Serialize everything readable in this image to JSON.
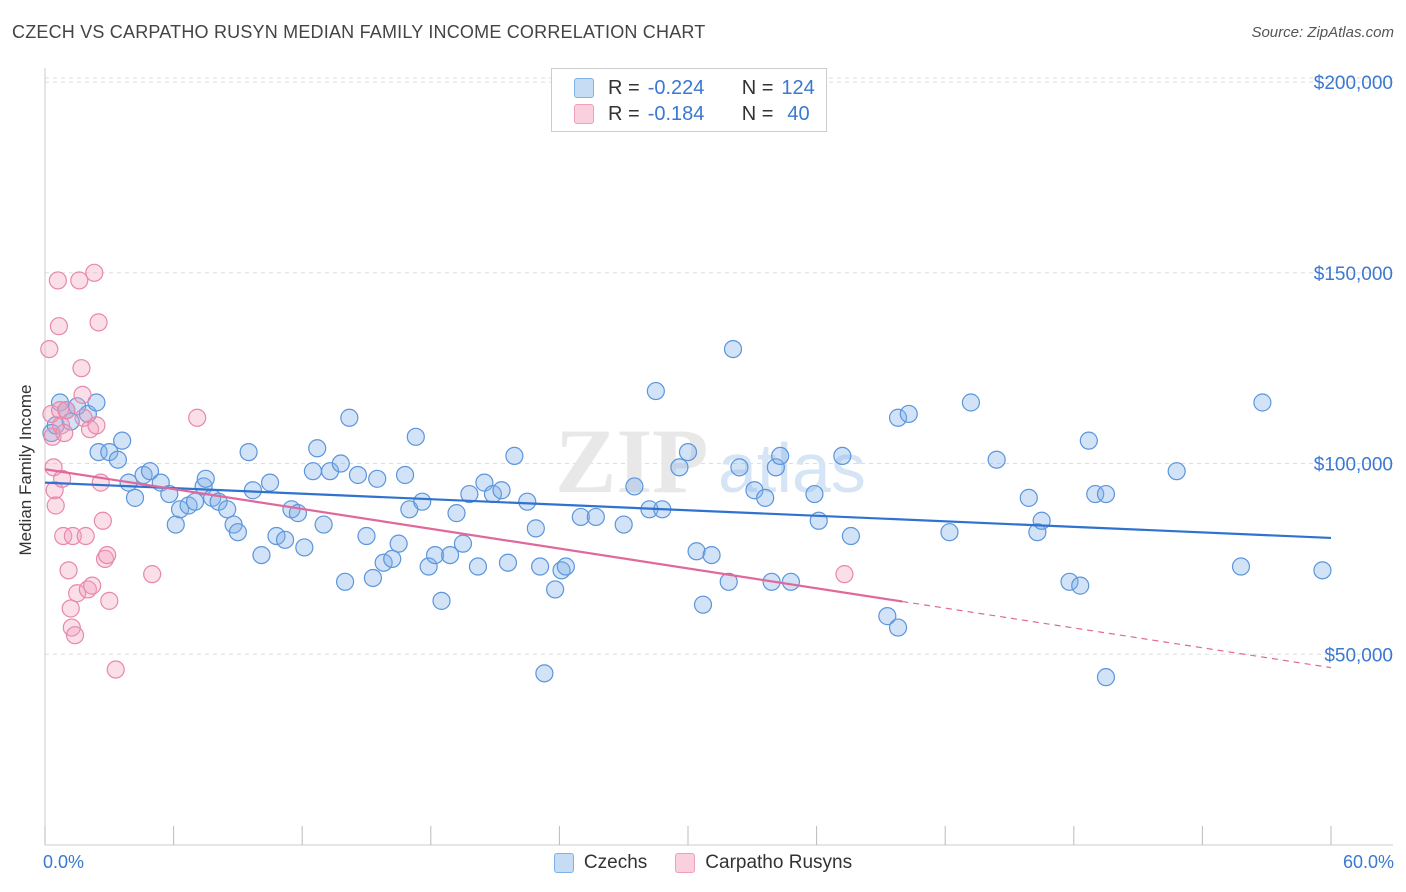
{
  "title": "CZECH VS CARPATHO RUSYN MEDIAN FAMILY INCOME CORRELATION CHART",
  "source": "Source: ZipAtlas.com",
  "watermark": {
    "zip": "ZIP",
    "atlas": "atlas"
  },
  "colors": {
    "blue": "#7fb0e8",
    "blue_line": "#2f72cf",
    "pink": "#f0a0bc",
    "pink_line": "#e0689a",
    "axis_text": "#3a78d2",
    "grid": "#dddddd"
  },
  "legend": {
    "row1": {
      "r_label": "R =",
      "r_value": "-0.224",
      "n_label": "N =",
      "n_value": "124"
    },
    "row2": {
      "r_label": "R =",
      "r_value": "-0.184",
      "n_label": "N =",
      "n_value": "40"
    }
  },
  "bottom_legend": {
    "czechs": "Czechs",
    "rusyns": "Carpatho Rusyns"
  },
  "x_axis": {
    "min_label": "0.0%",
    "max_label": "60.0%"
  },
  "chart_data": {
    "type": "scatter",
    "title": "CZECH VS CARPATHO RUSYN MEDIAN FAMILY INCOME CORRELATION CHART",
    "xlabel": "",
    "ylabel": "Median Family Income",
    "xlim": [
      0,
      60
    ],
    "ylim": [
      0,
      205000
    ],
    "y_ticks": [
      50000,
      100000,
      150000,
      200000
    ],
    "y_tick_labels": [
      "$50,000",
      "$100,000",
      "$150,000",
      "$200,000"
    ],
    "x_ticks": [
      0,
      6,
      12,
      18,
      24,
      30,
      36,
      42,
      48,
      54,
      60
    ],
    "series": [
      {
        "name": "Czechs",
        "r": -0.224,
        "n": 124,
        "trend": {
          "x": [
            0,
            60
          ],
          "y": [
            95000,
            80500
          ],
          "dashed_from": null
        },
        "points": [
          [
            0.3,
            108000
          ],
          [
            0.5,
            110000
          ],
          [
            0.7,
            116000
          ],
          [
            1.0,
            114000
          ],
          [
            1.2,
            111000
          ],
          [
            1.5,
            115000
          ],
          [
            2.0,
            113000
          ],
          [
            2.4,
            116000
          ],
          [
            2.5,
            103000
          ],
          [
            3.0,
            103000
          ],
          [
            3.4,
            101000
          ],
          [
            3.6,
            106000
          ],
          [
            3.9,
            95000
          ],
          [
            4.2,
            91000
          ],
          [
            4.6,
            97000
          ],
          [
            4.9,
            98000
          ],
          [
            5.4,
            95000
          ],
          [
            5.8,
            92000
          ],
          [
            6.1,
            84000
          ],
          [
            6.3,
            88000
          ],
          [
            6.7,
            89000
          ],
          [
            7.0,
            90000
          ],
          [
            7.4,
            94000
          ],
          [
            7.5,
            96000
          ],
          [
            7.8,
            91000
          ],
          [
            8.1,
            90000
          ],
          [
            8.5,
            88000
          ],
          [
            8.8,
            84000
          ],
          [
            9.0,
            82000
          ],
          [
            9.5,
            103000
          ],
          [
            9.7,
            93000
          ],
          [
            10.1,
            76000
          ],
          [
            10.5,
            95000
          ],
          [
            10.8,
            81000
          ],
          [
            11.2,
            80000
          ],
          [
            11.5,
            88000
          ],
          [
            11.8,
            87000
          ],
          [
            12.1,
            78000
          ],
          [
            12.5,
            98000
          ],
          [
            12.7,
            104000
          ],
          [
            13.0,
            84000
          ],
          [
            13.3,
            98000
          ],
          [
            13.8,
            100000
          ],
          [
            14.0,
            69000
          ],
          [
            14.2,
            112000
          ],
          [
            14.6,
            97000
          ],
          [
            15.0,
            81000
          ],
          [
            15.3,
            70000
          ],
          [
            15.5,
            96000
          ],
          [
            15.8,
            74000
          ],
          [
            16.2,
            75000
          ],
          [
            16.5,
            79000
          ],
          [
            16.8,
            97000
          ],
          [
            17.0,
            88000
          ],
          [
            17.3,
            107000
          ],
          [
            17.6,
            90000
          ],
          [
            17.9,
            73000
          ],
          [
            18.2,
            76000
          ],
          [
            18.5,
            64000
          ],
          [
            18.9,
            76000
          ],
          [
            19.2,
            87000
          ],
          [
            19.5,
            79000
          ],
          [
            19.8,
            92000
          ],
          [
            20.2,
            73000
          ],
          [
            20.5,
            95000
          ],
          [
            20.9,
            92000
          ],
          [
            21.3,
            93000
          ],
          [
            21.6,
            74000
          ],
          [
            21.9,
            102000
          ],
          [
            22.5,
            90000
          ],
          [
            22.9,
            83000
          ],
          [
            23.1,
            73000
          ],
          [
            23.8,
            67000
          ],
          [
            24.1,
            72000
          ],
          [
            24.3,
            73000
          ],
          [
            25.0,
            86000
          ],
          [
            25.7,
            86000
          ],
          [
            27.0,
            84000
          ],
          [
            27.5,
            94000
          ],
          [
            28.2,
            88000
          ],
          [
            28.5,
            119000
          ],
          [
            28.8,
            88000
          ],
          [
            29.6,
            99000
          ],
          [
            30.0,
            103000
          ],
          [
            30.4,
            77000
          ],
          [
            30.7,
            63000
          ],
          [
            31.1,
            76000
          ],
          [
            31.9,
            69000
          ],
          [
            32.4,
            99000
          ],
          [
            32.1,
            130000
          ],
          [
            33.1,
            93000
          ],
          [
            33.6,
            91000
          ],
          [
            33.9,
            69000
          ],
          [
            34.1,
            99000
          ],
          [
            34.3,
            102000
          ],
          [
            34.8,
            69000
          ],
          [
            35.9,
            92000
          ],
          [
            36.1,
            85000
          ],
          [
            37.2,
            102000
          ],
          [
            37.6,
            81000
          ],
          [
            39.3,
            60000
          ],
          [
            39.8,
            112000
          ],
          [
            39.8,
            57000
          ],
          [
            40.3,
            113000
          ],
          [
            42.2,
            82000
          ],
          [
            43.2,
            116000
          ],
          [
            44.4,
            101000
          ],
          [
            45.9,
            91000
          ],
          [
            46.3,
            82000
          ],
          [
            46.5,
            85000
          ],
          [
            47.8,
            69000
          ],
          [
            48.3,
            68000
          ],
          [
            48.7,
            106000
          ],
          [
            49.0,
            92000
          ],
          [
            49.5,
            92000
          ],
          [
            52.8,
            98000
          ],
          [
            55.8,
            73000
          ],
          [
            56.8,
            116000
          ],
          [
            59.6,
            72000
          ],
          [
            23.3,
            45000
          ],
          [
            49.5,
            44000
          ]
        ]
      },
      {
        "name": "Carpatho Rusyns",
        "r": -0.184,
        "n": 40,
        "trend": {
          "x": [
            0,
            60
          ],
          "y": [
            98500,
            46500
          ],
          "dashed_from": 40
        },
        "points": [
          [
            0.2,
            130000
          ],
          [
            0.3,
            113000
          ],
          [
            0.35,
            107000
          ],
          [
            0.4,
            99000
          ],
          [
            0.45,
            93000
          ],
          [
            0.5,
            89000
          ],
          [
            0.6,
            148000
          ],
          [
            0.65,
            136000
          ],
          [
            0.7,
            114000
          ],
          [
            0.75,
            110000
          ],
          [
            0.8,
            96000
          ],
          [
            0.85,
            81000
          ],
          [
            0.9,
            108000
          ],
          [
            1.0,
            114000
          ],
          [
            1.1,
            72000
          ],
          [
            1.2,
            62000
          ],
          [
            1.25,
            57000
          ],
          [
            1.3,
            81000
          ],
          [
            1.4,
            55000
          ],
          [
            1.5,
            66000
          ],
          [
            1.6,
            148000
          ],
          [
            1.7,
            125000
          ],
          [
            1.75,
            118000
          ],
          [
            1.8,
            112000
          ],
          [
            1.9,
            81000
          ],
          [
            2.0,
            67000
          ],
          [
            2.1,
            109000
          ],
          [
            2.2,
            68000
          ],
          [
            2.3,
            150000
          ],
          [
            2.4,
            110000
          ],
          [
            2.5,
            137000
          ],
          [
            2.6,
            95000
          ],
          [
            2.7,
            85000
          ],
          [
            2.8,
            75000
          ],
          [
            2.9,
            76000
          ],
          [
            3.0,
            64000
          ],
          [
            3.3,
            46000
          ],
          [
            5.0,
            71000
          ],
          [
            7.1,
            112000
          ],
          [
            37.3,
            71000
          ]
        ]
      }
    ]
  }
}
